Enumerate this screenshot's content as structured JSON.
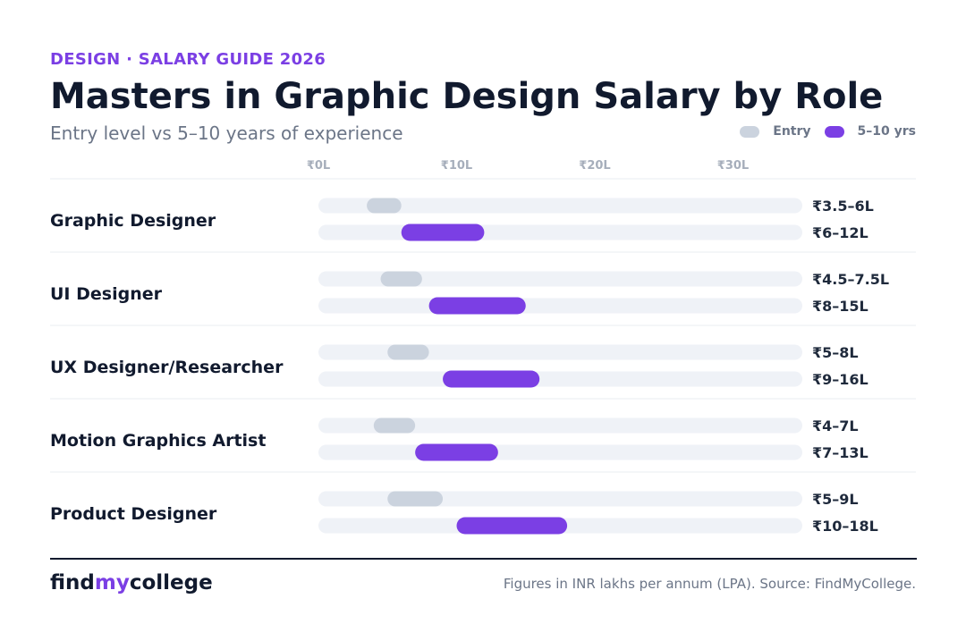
{
  "eyebrow": "DESIGN · SALARY GUIDE 2026",
  "title": "Masters in Graphic Design Salary by Role",
  "subtitle": "Entry level vs 5–10 years of experience",
  "legend": {
    "entry_label": "Entry",
    "senior_label": "5–10 yrs"
  },
  "colors": {
    "entry": "#cbd3de",
    "senior": "#7b3fe4",
    "track": "#eff2f7",
    "label": "#111a2e",
    "value": "#1f2a3c",
    "tick": "#a6aebb",
    "divider": "#e9ecf1"
  },
  "chart_data": {
    "type": "bar",
    "subtype": "range",
    "unit": "INR lakhs per annum",
    "x_ticks": [
      "₹0L",
      "₹10L",
      "₹20L",
      "₹30L"
    ],
    "x_tick_values": [
      0,
      10,
      20,
      30
    ],
    "xlim": [
      0,
      35
    ],
    "series": [
      {
        "name": "Entry"
      },
      {
        "name": "5–10 yrs"
      }
    ],
    "roles": [
      {
        "name": "Graphic Designer",
        "entry": {
          "min": 3.5,
          "max": 6,
          "label": "₹3.5–6L"
        },
        "senior": {
          "min": 6,
          "max": 12,
          "label": "₹6–12L"
        }
      },
      {
        "name": "UI Designer",
        "entry": {
          "min": 4.5,
          "max": 7.5,
          "label": "₹4.5–7.5L"
        },
        "senior": {
          "min": 8,
          "max": 15,
          "label": "₹8–15L"
        }
      },
      {
        "name": "UX Designer/Researcher",
        "entry": {
          "min": 5,
          "max": 8,
          "label": "₹5–8L"
        },
        "senior": {
          "min": 9,
          "max": 16,
          "label": "₹9–16L"
        }
      },
      {
        "name": "Motion Graphics Artist",
        "entry": {
          "min": 4,
          "max": 7,
          "label": "₹4–7L"
        },
        "senior": {
          "min": 7,
          "max": 13,
          "label": "₹7–13L"
        }
      },
      {
        "name": "Product Designer",
        "entry": {
          "min": 5,
          "max": 9,
          "label": "₹5–9L"
        },
        "senior": {
          "min": 10,
          "max": 18,
          "label": "₹10–18L"
        }
      }
    ]
  },
  "footer": {
    "brand_part1": "find",
    "brand_part2": "my",
    "brand_part3": "college",
    "source": "Figures in INR lakhs per annum (LPA). Source: FindMyCollege."
  }
}
